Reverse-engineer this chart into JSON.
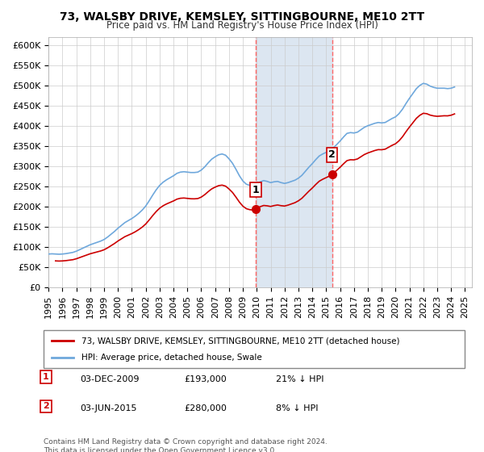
{
  "title": "73, WALSBY DRIVE, KEMSLEY, SITTINGBOURNE, ME10 2TT",
  "subtitle": "Price paid vs. HM Land Registry's House Price Index (HPI)",
  "hpi_label": "HPI: Average price, detached house, Swale",
  "property_label": "73, WALSBY DRIVE, KEMSLEY, SITTINGBOURNE, ME10 2TT (detached house)",
  "footnote": "Contains HM Land Registry data © Crown copyright and database right 2024.\nThis data is licensed under the Open Government Licence v3.0.",
  "sale1_date": "03-DEC-2009",
  "sale1_price": 193000,
  "sale1_hpi_diff": "21% ↓ HPI",
  "sale2_date": "03-JUN-2015",
  "sale2_price": 280000,
  "sale2_hpi_diff": "8% ↓ HPI",
  "hpi_color": "#6fa8dc",
  "property_color": "#cc0000",
  "sale_marker_color": "#cc0000",
  "shaded_region_color": "#dce6f1",
  "vline_color": "#ff6666",
  "ylim": [
    0,
    620000
  ],
  "yticks": [
    0,
    50000,
    100000,
    150000,
    200000,
    250000,
    300000,
    350000,
    400000,
    450000,
    500000,
    550000,
    600000
  ],
  "xlim_start": 1995.0,
  "xlim_end": 2025.5,
  "sale1_x": 2009.92,
  "sale2_x": 2015.42,
  "hpi_years": [
    1995.0,
    1995.25,
    1995.5,
    1995.75,
    1996.0,
    1996.25,
    1996.5,
    1996.75,
    1997.0,
    1997.25,
    1997.5,
    1997.75,
    1998.0,
    1998.25,
    1998.5,
    1998.75,
    1999.0,
    1999.25,
    1999.5,
    1999.75,
    2000.0,
    2000.25,
    2000.5,
    2000.75,
    2001.0,
    2001.25,
    2001.5,
    2001.75,
    2002.0,
    2002.25,
    2002.5,
    2002.75,
    2003.0,
    2003.25,
    2003.5,
    2003.75,
    2004.0,
    2004.25,
    2004.5,
    2004.75,
    2005.0,
    2005.25,
    2005.5,
    2005.75,
    2006.0,
    2006.25,
    2006.5,
    2006.75,
    2007.0,
    2007.25,
    2007.5,
    2007.75,
    2008.0,
    2008.25,
    2008.5,
    2008.75,
    2009.0,
    2009.25,
    2009.5,
    2009.75,
    2010.0,
    2010.25,
    2010.5,
    2010.75,
    2011.0,
    2011.25,
    2011.5,
    2011.75,
    2012.0,
    2012.25,
    2012.5,
    2012.75,
    2013.0,
    2013.25,
    2013.5,
    2013.75,
    2014.0,
    2014.25,
    2014.5,
    2014.75,
    2015.0,
    2015.25,
    2015.5,
    2015.75,
    2016.0,
    2016.25,
    2016.5,
    2016.75,
    2017.0,
    2017.25,
    2017.5,
    2017.75,
    2018.0,
    2018.25,
    2018.5,
    2018.75,
    2019.0,
    2019.25,
    2019.5,
    2019.75,
    2020.0,
    2020.25,
    2020.5,
    2020.75,
    2021.0,
    2021.25,
    2021.5,
    2021.75,
    2022.0,
    2022.25,
    2022.5,
    2022.75,
    2023.0,
    2023.25,
    2023.5,
    2023.75,
    2024.0,
    2024.25
  ],
  "hpi_values": [
    82000,
    82500,
    82000,
    81500,
    82000,
    83000,
    84500,
    86000,
    89000,
    93000,
    97000,
    101000,
    105000,
    108000,
    111000,
    114000,
    118000,
    124000,
    131000,
    138000,
    146000,
    153000,
    160000,
    165000,
    170000,
    176000,
    183000,
    191000,
    201000,
    214000,
    228000,
    241000,
    252000,
    260000,
    266000,
    271000,
    276000,
    282000,
    285000,
    286000,
    285000,
    284000,
    284000,
    285000,
    290000,
    298000,
    308000,
    317000,
    323000,
    328000,
    330000,
    327000,
    318000,
    307000,
    292000,
    276000,
    263000,
    255000,
    252000,
    251000,
    255000,
    261000,
    264000,
    262000,
    259000,
    261000,
    262000,
    259000,
    257000,
    259000,
    262000,
    265000,
    270000,
    277000,
    287000,
    297000,
    306000,
    316000,
    325000,
    330000,
    334000,
    338000,
    345000,
    353000,
    362000,
    372000,
    381000,
    383000,
    382000,
    384000,
    390000,
    396000,
    400000,
    403000,
    406000,
    408000,
    407000,
    408000,
    413000,
    418000,
    422000,
    430000,
    441000,
    455000,
    468000,
    480000,
    492000,
    500000,
    505000,
    503000,
    498000,
    495000,
    493000,
    493000,
    493000,
    492000,
    493000,
    496000
  ],
  "property_years": [
    1995.5,
    2009.92,
    2015.42,
    2024.5
  ],
  "property_values": [
    65000,
    193000,
    280000,
    430000
  ],
  "xtick_years": [
    1995,
    1996,
    1997,
    1998,
    1999,
    2000,
    2001,
    2002,
    2003,
    2004,
    2005,
    2006,
    2007,
    2008,
    2009,
    2010,
    2011,
    2012,
    2013,
    2014,
    2015,
    2016,
    2017,
    2018,
    2019,
    2020,
    2021,
    2022,
    2023,
    2024,
    2025
  ]
}
